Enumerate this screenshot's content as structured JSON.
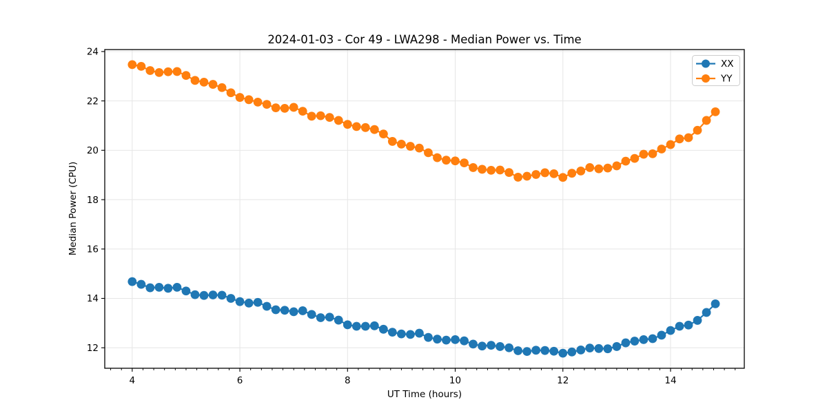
{
  "chart_data": {
    "type": "line",
    "title": "2024-01-03 - Cor 49 - LWA298 - Median Power vs. Time",
    "xlabel": "UT Time (hours)",
    "ylabel": "Median Power (CPU)",
    "xlim": [
      3.49,
      15.37
    ],
    "ylim": [
      11.17,
      24.08
    ],
    "x_major_ticks": [
      4,
      6,
      8,
      10,
      12,
      14
    ],
    "x_minor_tick_step": 0.2,
    "y_major_ticks": [
      12,
      14,
      16,
      18,
      20,
      22,
      24
    ],
    "grid": true,
    "grid_color": "#e6e6e6",
    "legend": {
      "position": "upper right",
      "entries": [
        "XX",
        "YY"
      ]
    },
    "x": [
      4.0,
      4.167,
      4.333,
      4.5,
      4.667,
      4.833,
      5.0,
      5.167,
      5.333,
      5.5,
      5.667,
      5.833,
      6.0,
      6.167,
      6.333,
      6.5,
      6.667,
      6.833,
      7.0,
      7.167,
      7.333,
      7.5,
      7.667,
      7.833,
      8.0,
      8.167,
      8.333,
      8.5,
      8.667,
      8.833,
      9.0,
      9.167,
      9.333,
      9.5,
      9.667,
      9.833,
      10.0,
      10.167,
      10.333,
      10.5,
      10.667,
      10.833,
      11.0,
      11.167,
      11.333,
      11.5,
      11.667,
      11.833,
      12.0,
      12.167,
      12.333,
      12.5,
      12.667,
      12.833,
      13.0,
      13.167,
      13.333,
      13.5,
      13.667,
      13.833,
      14.0,
      14.167,
      14.333,
      14.5,
      14.667,
      14.833
    ],
    "series": [
      {
        "name": "XX",
        "color": "#1f77b4",
        "marker": "circle",
        "values": [
          14.68,
          14.57,
          14.43,
          14.45,
          14.41,
          14.45,
          14.3,
          14.15,
          14.12,
          14.14,
          14.13,
          14.0,
          13.87,
          13.81,
          13.84,
          13.68,
          13.54,
          13.52,
          13.46,
          13.5,
          13.35,
          13.22,
          13.24,
          13.12,
          12.93,
          12.87,
          12.87,
          12.89,
          12.75,
          12.63,
          12.56,
          12.54,
          12.59,
          12.42,
          12.35,
          12.31,
          12.33,
          12.28,
          12.15,
          12.07,
          12.1,
          12.05,
          12.0,
          11.88,
          11.85,
          11.9,
          11.89,
          11.86,
          11.78,
          11.83,
          11.91,
          11.99,
          11.97,
          11.96,
          12.05,
          12.2,
          12.27,
          12.33,
          12.37,
          12.51,
          12.7,
          12.87,
          12.92,
          13.11,
          13.43,
          13.78
        ]
      },
      {
        "name": "YY",
        "color": "#ff7f0e",
        "marker": "circle",
        "values": [
          23.47,
          23.4,
          23.23,
          23.15,
          23.18,
          23.19,
          23.03,
          22.83,
          22.76,
          22.67,
          22.54,
          22.33,
          22.14,
          22.05,
          21.95,
          21.86,
          21.72,
          21.7,
          21.74,
          21.58,
          21.38,
          21.4,
          21.33,
          21.21,
          21.05,
          20.96,
          20.92,
          20.84,
          20.66,
          20.36,
          20.25,
          20.16,
          20.09,
          19.9,
          19.7,
          19.6,
          19.57,
          19.49,
          19.3,
          19.23,
          19.19,
          19.2,
          19.1,
          18.91,
          18.95,
          19.02,
          19.09,
          19.05,
          18.9,
          19.07,
          19.16,
          19.3,
          19.25,
          19.28,
          19.37,
          19.56,
          19.67,
          19.84,
          19.86,
          20.05,
          20.23,
          20.46,
          20.51,
          20.81,
          21.21,
          21.56
        ]
      }
    ]
  }
}
